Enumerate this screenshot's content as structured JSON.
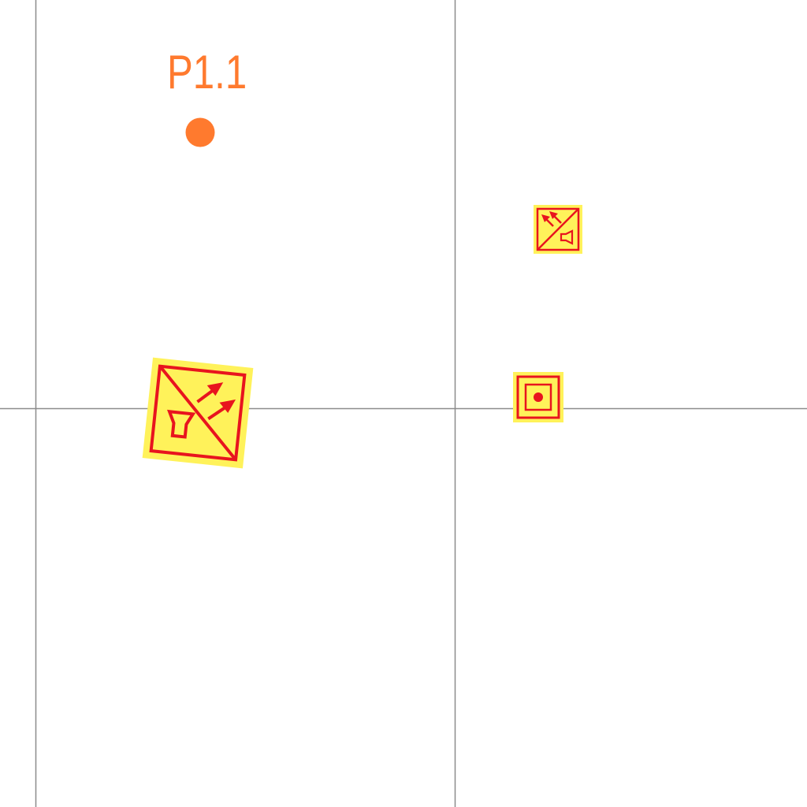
{
  "colors": {
    "background": "#ffffff",
    "grid_line": "#8c8c8c",
    "point_marker": "#ff7a2e",
    "symbol_fill": "#fff25a",
    "symbol_stroke": "#e8141e"
  },
  "point": {
    "label": "P1.1",
    "marker": "filled-circle"
  },
  "symbols": [
    {
      "name": "directional-sounder-icon",
      "type": "diagonal-split-with-arrows-and-horn"
    },
    {
      "name": "small-directional-sounder-icon",
      "type": "diagonal-split-with-arrows-and-horn"
    },
    {
      "name": "manual-call-point-icon",
      "type": "concentric-square-with-dot"
    }
  ]
}
